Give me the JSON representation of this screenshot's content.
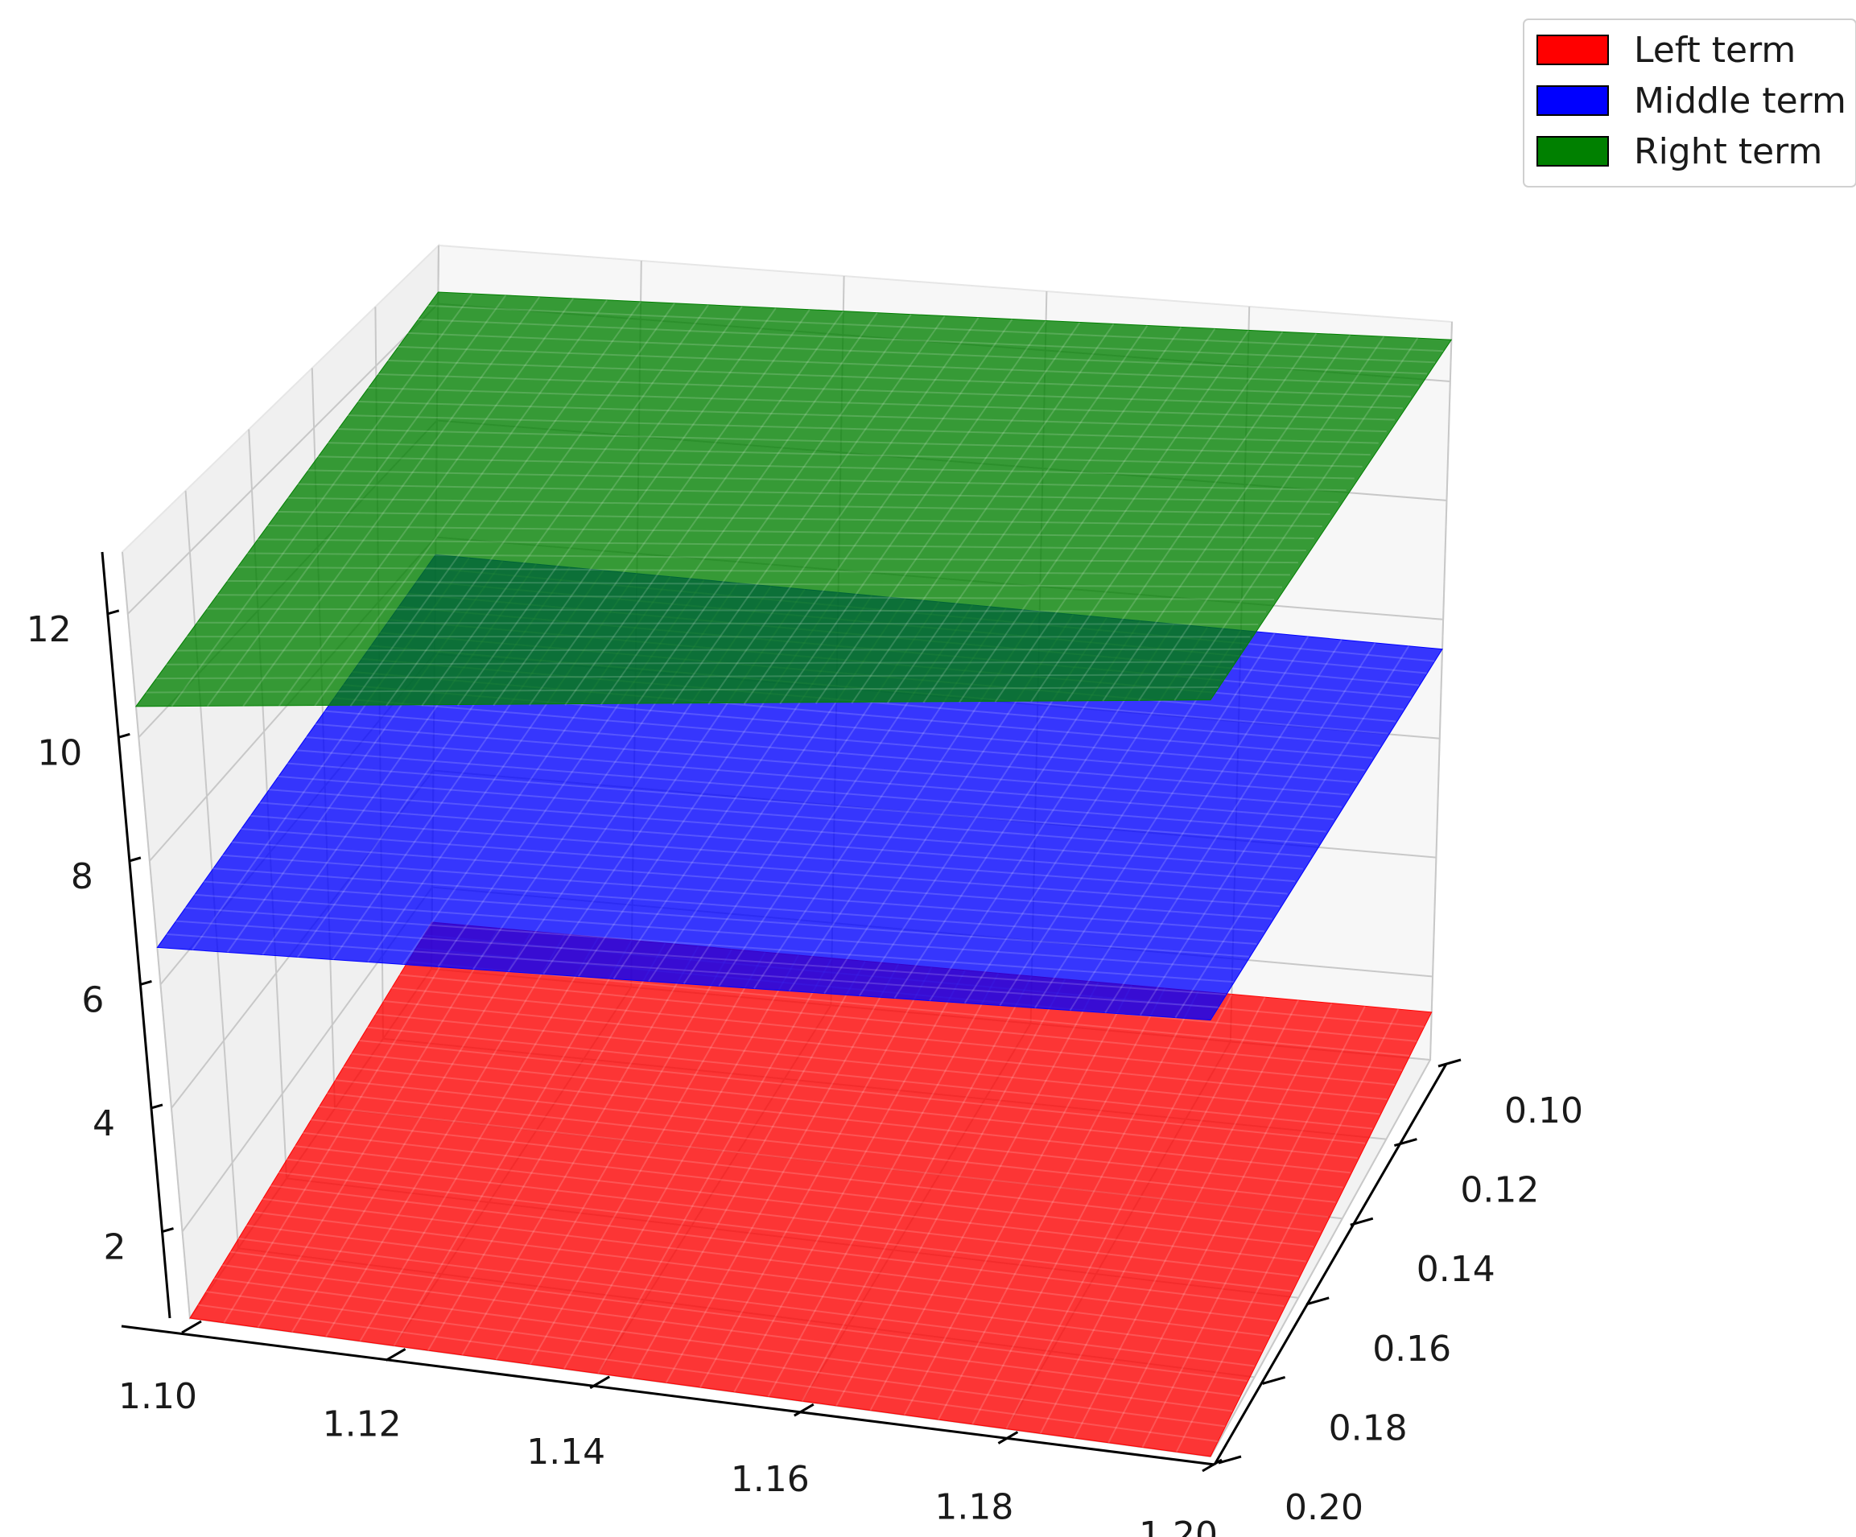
{
  "chart_data": {
    "type": "surface3d",
    "x": {
      "label": "",
      "ticks": [
        "1.10",
        "1.12",
        "1.14",
        "1.16",
        "1.18",
        "1.20"
      ],
      "range": [
        1.1,
        1.2
      ]
    },
    "y": {
      "label": "",
      "ticks": [
        "0.10",
        "0.12",
        "0.14",
        "0.16",
        "0.18",
        "0.20"
      ],
      "range": [
        0.1,
        0.2
      ]
    },
    "z": {
      "label": "",
      "ticks": [
        "2",
        "4",
        "6",
        "8",
        "10",
        "12"
      ],
      "range": [
        0.6,
        13.0
      ]
    },
    "grid": true,
    "legend": {
      "position": "top-right"
    },
    "series": [
      {
        "name": "Left term",
        "color": "#ff0000",
        "corners": {
          "x1.10_y0.10": 1.4,
          "x1.20_y0.10": 1.4,
          "x1.10_y0.20": 0.6,
          "x1.20_y0.20": 0.6
        }
      },
      {
        "name": "Middle term",
        "color": "#0000ff",
        "corners": {
          "x1.10_y0.10": 7.7,
          "x1.20_y0.10": 7.5,
          "x1.10_y0.20": 6.6,
          "x1.20_y0.20": 6.6
        }
      },
      {
        "name": "Right term",
        "color": "#008000",
        "corners": {
          "x1.10_y0.10": 12.2,
          "x1.20_y0.10": 12.7,
          "x1.10_y0.20": 10.5,
          "x1.20_y0.20": 11.0
        }
      }
    ]
  }
}
